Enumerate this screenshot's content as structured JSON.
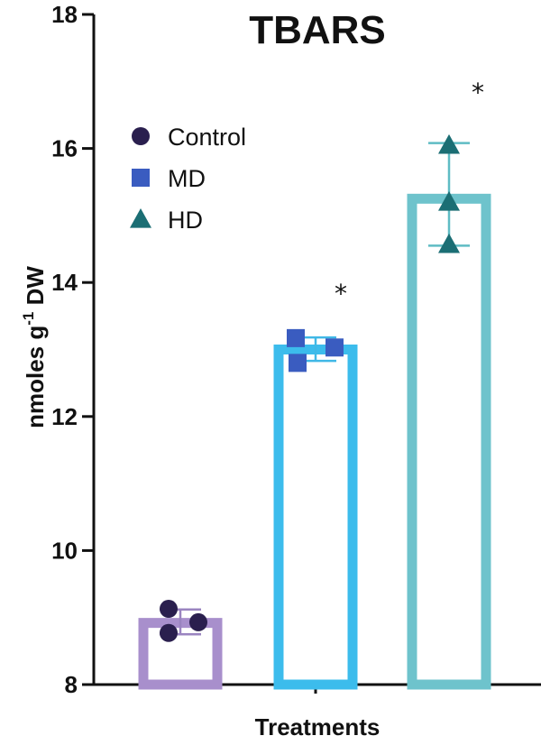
{
  "chart_data": {
    "type": "bar",
    "title": "TBARS",
    "xlabel": "Treatments",
    "ylabel": "nmoles g",
    "ylabel_sup": "-1",
    "ylabel_unit": " DW",
    "ylim": [
      8,
      18
    ],
    "yticks": [
      "8",
      "10",
      "12",
      "14",
      "16",
      "18"
    ],
    "categories": [
      "Control",
      "MD",
      "HD"
    ],
    "values": [
      8.92,
      13.0,
      15.25
    ],
    "error": [
      {
        "low": 8.75,
        "high": 9.12
      },
      {
        "low": 12.83,
        "high": 13.18
      },
      {
        "low": 14.55,
        "high": 16.08
      }
    ],
    "points": [
      [
        9.13,
        8.93,
        8.77
      ],
      [
        13.17,
        13.03,
        12.8
      ],
      [
        16.05,
        15.2,
        14.57
      ]
    ],
    "significance": [
      "",
      "*",
      "*"
    ],
    "legend_position": "top-left",
    "legend": [
      {
        "label": "Control",
        "marker": "circle",
        "color": "#2a1f4e"
      },
      {
        "label": "MD",
        "marker": "square",
        "color": "#3a5cc0"
      },
      {
        "label": "HD",
        "marker": "triangle",
        "color": "#1b6e74"
      }
    ],
    "bar_colors": [
      "#a88fcc",
      "#3cbcec",
      "#6ec3cc"
    ],
    "marker_colors": [
      "#2a1f4e",
      "#3a5cc0",
      "#1b6e74"
    ],
    "errorbar_colors": [
      "#9a84c0",
      "#40b8e6",
      "#5fbcc4"
    ]
  }
}
